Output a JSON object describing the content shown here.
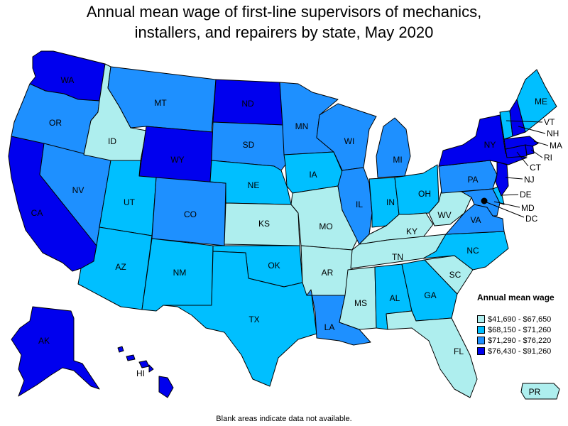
{
  "title_line1": "Annual mean wage of first-line supervisors of mechanics,",
  "title_line2": "installers, and repairers by state, May 2020",
  "legend": {
    "title": "Annual mean wage",
    "ranges": [
      {
        "label": "$41,690 - $67,650",
        "color": "#aeeeee"
      },
      {
        "label": "$68,150 - $71,260",
        "color": "#00bfff"
      },
      {
        "label": "$71,290 - $76,220",
        "color": "#1e90ff"
      },
      {
        "label": "$76,430 - $91,260",
        "color": "#0000ee"
      }
    ]
  },
  "footnote": "Blank areas indicate data not available.",
  "states": {
    "WA": 3,
    "OR": 2,
    "CA": 3,
    "NV": 2,
    "ID": 0,
    "MT": 2,
    "WY": 3,
    "UT": 1,
    "AZ": 1,
    "CO": 2,
    "NM": 1,
    "ND": 3,
    "SD": 2,
    "NE": 1,
    "KS": 0,
    "OK": 1,
    "TX": 1,
    "MN": 2,
    "IA": 1,
    "MO": 0,
    "AR": 0,
    "LA": 2,
    "WI": 2,
    "IL": 2,
    "MI": 2,
    "IN": 1,
    "OH": 1,
    "KY": 0,
    "TN": 0,
    "MS": 0,
    "AL": 1,
    "GA": 1,
    "FL": 0,
    "SC": 0,
    "NC": 1,
    "VA": 2,
    "WV": 0,
    "PA": 2,
    "NY": 3,
    "VT": 1,
    "NH": 3,
    "ME": 1,
    "MA": 3,
    "RI": 3,
    "CT": 3,
    "NJ": 3,
    "DE": 1,
    "MD": 2,
    "DC": 3,
    "AK": 3,
    "HI": 3,
    "PR": 0
  }
}
